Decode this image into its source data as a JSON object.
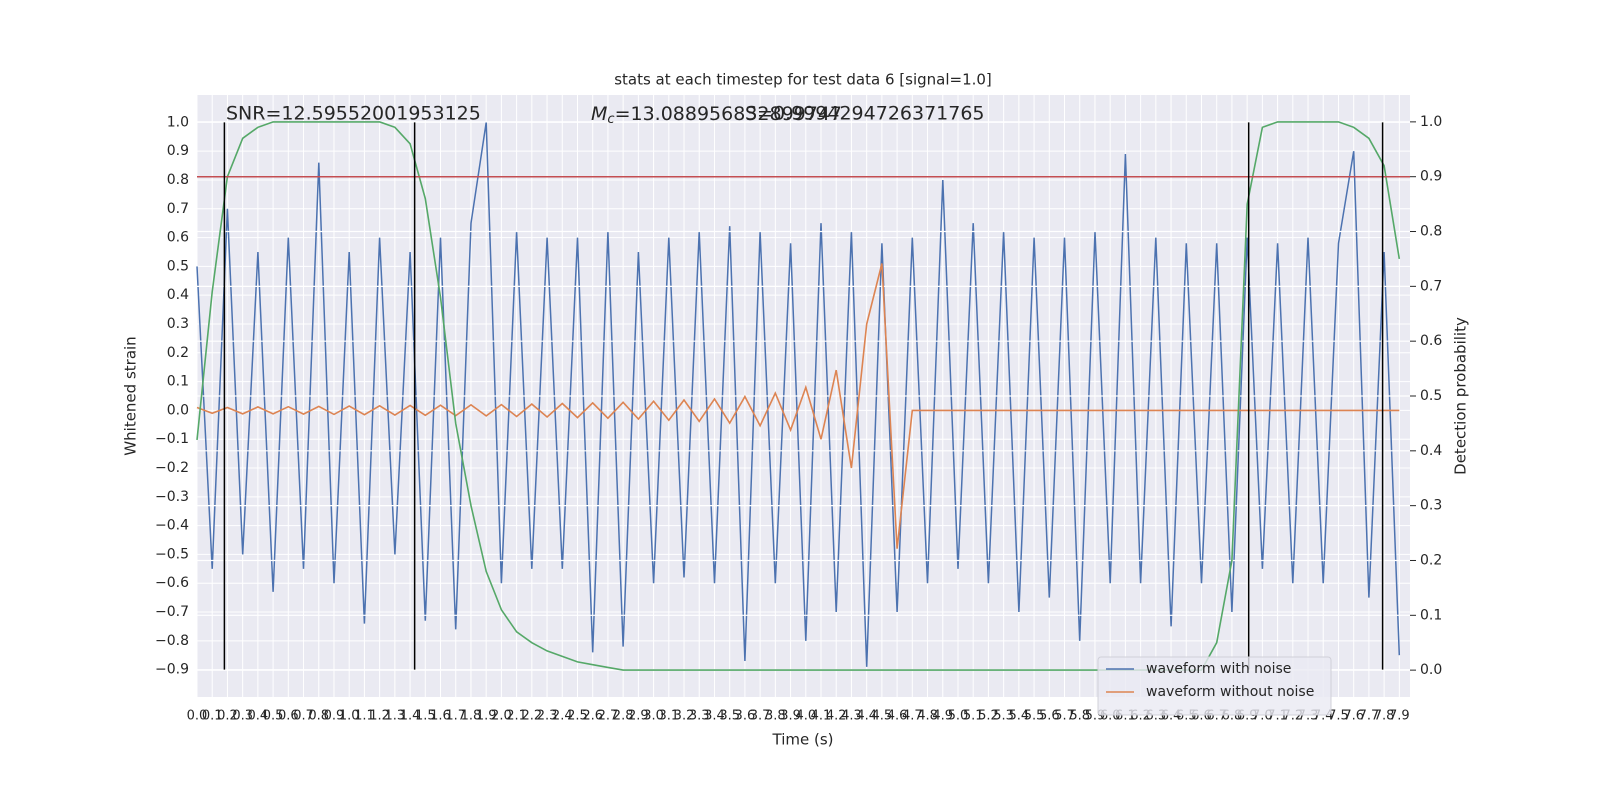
{
  "chart_data": {
    "type": "line",
    "title": "stats at each timestep for test data 6 [signal=1.0]",
    "xlabel": "Time (s)",
    "ylabel": "Whitened strain",
    "y2label": "Detection probability",
    "annotations": [
      "SNR=12.59552001953125",
      {
        "symbol": "M",
        "subscript": "c",
        "text": "=13.088956832899747"
      },
      "S=0.9994294726371765"
    ],
    "xlim": [
      0,
      7.97
    ],
    "ylim": [
      -0.995,
      1.095
    ],
    "y2lim": [
      -0.049,
      1.049
    ],
    "grid": true,
    "legend": "lower right",
    "xticks": [
      {
        "value": 0,
        "label": "0.0"
      },
      0.1,
      0.2,
      0.3,
      0.4,
      0.5,
      0.6,
      0.7,
      0.8,
      0.9,
      {
        "value": 1,
        "label": "1.0"
      },
      1.1,
      1.2,
      1.3,
      1.4,
      1.5,
      1.6,
      1.7,
      1.8,
      1.9,
      {
        "value": 2,
        "label": "2.0"
      },
      2.1,
      2.2,
      2.3,
      2.4,
      2.5,
      2.6,
      2.7,
      2.8,
      2.9,
      {
        "value": 3,
        "label": "3.0"
      },
      3.1,
      3.2,
      3.3,
      3.4,
      3.5,
      3.6,
      3.7,
      3.8,
      3.9,
      {
        "value": 4,
        "label": "4.0"
      },
      4.1,
      4.2,
      4.3,
      4.4,
      4.5,
      4.6,
      4.7,
      4.8,
      4.9,
      {
        "value": 5,
        "label": "5.0"
      },
      5.1,
      5.2,
      5.3,
      5.4,
      5.5,
      5.6,
      5.7,
      5.8,
      5.9,
      {
        "value": 6,
        "label": "6.0"
      },
      6.1,
      6.2,
      6.3,
      6.4,
      6.5,
      6.6,
      6.7,
      6.8,
      6.9,
      {
        "value": 7,
        "label": "7.0"
      },
      7.1,
      7.2,
      7.3,
      7.4,
      7.5,
      7.6,
      7.7,
      7.8,
      7.9
    ],
    "yticks": [
      {
        "value": -0.9,
        "label": "−0.9"
      },
      {
        "value": -0.8,
        "label": "−0.8"
      },
      {
        "value": -0.7,
        "label": "−0.7"
      },
      {
        "value": -0.6,
        "label": "−0.6"
      },
      {
        "value": -0.5,
        "label": "−0.5"
      },
      {
        "value": -0.4,
        "label": "−0.4"
      },
      {
        "value": -0.3,
        "label": "−0.3"
      },
      {
        "value": -0.2,
        "label": "−0.2"
      },
      {
        "value": -0.1,
        "label": "−0.1"
      },
      {
        "value": 0,
        "label": "0.0"
      },
      0.1,
      0.2,
      0.3,
      0.4,
      0.5,
      0.6,
      0.7,
      0.8,
      0.9,
      {
        "value": 1,
        "label": "1.0"
      }
    ],
    "y2ticks": [
      {
        "value": 0,
        "label": "0.0"
      },
      0.1,
      0.2,
      0.3,
      0.4,
      0.5,
      0.6,
      0.7,
      0.8,
      0.9,
      {
        "value": 1,
        "label": "1.0"
      }
    ],
    "x": [
      0,
      0.1,
      0.2,
      0.3,
      0.4,
      0.5,
      0.6,
      0.7,
      0.8,
      0.9,
      1,
      1.1,
      1.2,
      1.3,
      1.4,
      1.5,
      1.6,
      1.7,
      1.8,
      1.9,
      2,
      2.1,
      2.2,
      2.3,
      2.4,
      2.5,
      2.6,
      2.7,
      2.8,
      2.9,
      3,
      3.1,
      3.2,
      3.3,
      3.4,
      3.5,
      3.6,
      3.7,
      3.8,
      3.9,
      4,
      4.1,
      4.2,
      4.3,
      4.4,
      4.5,
      4.6,
      4.7,
      4.8,
      4.9,
      5,
      5.1,
      5.2,
      5.3,
      5.4,
      5.5,
      5.6,
      5.7,
      5.8,
      5.9,
      6,
      6.1,
      6.2,
      6.3,
      6.4,
      6.5,
      6.6,
      6.7,
      6.8,
      6.9,
      7,
      7.1,
      7.2,
      7.3,
      7.4,
      7.5,
      7.6,
      7.7,
      7.8,
      7.9
    ],
    "series": [
      {
        "name": "waveform with noise",
        "color": "#4c72b0",
        "values": [
          0.5,
          -0.55,
          0.7,
          -0.5,
          0.55,
          -0.63,
          0.6,
          -0.55,
          0.86,
          -0.6,
          0.55,
          -0.74,
          0.6,
          -0.5,
          0.55,
          -0.73,
          0.6,
          -0.76,
          0.65,
          1.0,
          -0.6,
          0.62,
          -0.55,
          0.6,
          -0.55,
          0.6,
          -0.84,
          0.62,
          -0.82,
          0.55,
          -0.6,
          0.6,
          -0.58,
          0.62,
          -0.6,
          0.64,
          -0.87,
          0.62,
          -0.6,
          0.58,
          -0.8,
          0.65,
          -0.7,
          0.62,
          -0.89,
          0.58,
          -0.7,
          0.6,
          -0.6,
          0.8,
          -0.55,
          0.65,
          -0.6,
          0.62,
          -0.7,
          0.6,
          -0.65,
          0.6,
          -0.8,
          0.62,
          -0.6,
          0.89,
          -0.6,
          0.6,
          -0.75,
          0.58,
          -0.6,
          0.58,
          -0.7,
          0.6,
          -0.55,
          0.58,
          -0.6,
          0.6,
          -0.6,
          0.58,
          0.9,
          -0.65,
          0.55,
          -0.85
        ]
      },
      {
        "name": "waveform without noise",
        "color": "#dd8452",
        "values": [
          0.01,
          -0.01,
          0.01,
          -0.012,
          0.012,
          -0.012,
          0.013,
          -0.013,
          0.014,
          -0.014,
          0.015,
          -0.015,
          0.016,
          -0.016,
          0.017,
          -0.017,
          0.018,
          -0.018,
          0.019,
          -0.019,
          0.02,
          -0.021,
          0.022,
          -0.023,
          0.024,
          -0.025,
          0.026,
          -0.027,
          0.028,
          -0.03,
          0.032,
          -0.034,
          0.036,
          -0.038,
          0.04,
          -0.044,
          0.048,
          -0.053,
          0.06,
          -0.068,
          0.08,
          -0.1,
          0.14,
          -0.2,
          0.3,
          0.51,
          -0.48,
          0,
          0,
          0,
          0,
          0,
          0,
          0,
          0,
          0,
          0,
          0,
          0,
          0,
          0,
          0,
          0,
          0,
          0,
          0,
          0,
          0,
          0,
          0,
          0,
          0,
          0,
          0,
          0,
          0,
          0,
          0,
          0,
          0
        ]
      },
      {
        "color": "#55a868",
        "axis": "y2",
        "values": [
          0.42,
          0.69,
          0.9,
          0.97,
          0.99,
          1,
          1,
          1,
          1,
          1,
          1,
          1,
          1,
          0.99,
          0.96,
          0.86,
          0.68,
          0.45,
          0.3,
          0.18,
          0.11,
          0.07,
          0.05,
          0.035,
          0.025,
          0.015,
          0.01,
          0.005,
          0,
          0,
          0,
          0,
          0,
          0,
          0,
          0,
          0,
          0,
          0,
          0,
          0,
          0,
          0,
          0,
          0,
          0,
          0,
          0,
          0,
          0,
          0,
          0,
          0,
          0,
          0,
          0,
          0,
          0,
          0,
          0,
          0,
          0,
          0,
          0,
          0,
          0,
          0,
          0.05,
          0.2,
          0.85,
          0.99,
          1,
          1,
          1,
          1,
          1,
          0.99,
          0.97,
          0.92,
          0.75
        ]
      }
    ],
    "threshold": {
      "value": 0.9,
      "axis": "y2",
      "color": "#c44e52"
    },
    "vlines": {
      "x": [
        0.18,
        1.43,
        6.91,
        7.79
      ],
      "ymin": -0.9,
      "ymax": 1.0,
      "color": "#000000"
    }
  }
}
